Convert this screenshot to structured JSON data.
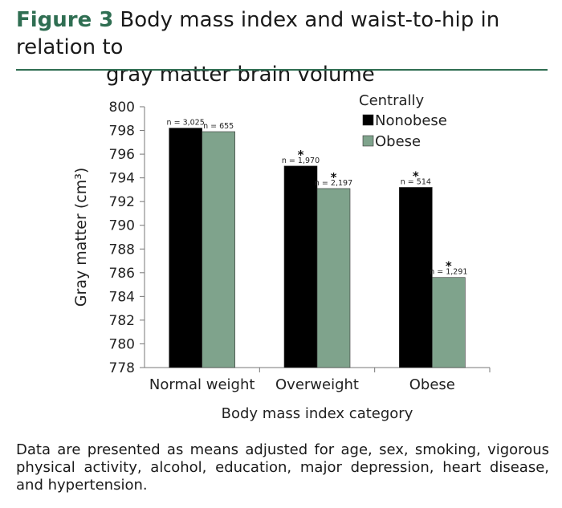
{
  "figure": {
    "label": "Figure 3",
    "title_line1": "Body mass index and waist-to-hip in relation to",
    "title_line2": "gray matter brain volume"
  },
  "caption": "Data are presented as means adjusted for age, sex, smoking, vigorous physical activity, alcohol, education, major depression, heart disease, and hypertension.",
  "colors": {
    "nonobese": "#000000",
    "obese": "#7fa38c",
    "accent": "#2f6e52"
  },
  "chart_data": {
    "type": "bar",
    "title": "",
    "xlabel": "Body mass index category",
    "ylabel": "Gray matter (cm³)",
    "ylim": [
      778,
      800
    ],
    "yticks": [
      778,
      780,
      782,
      784,
      786,
      788,
      790,
      792,
      794,
      796,
      798,
      800
    ],
    "categories": [
      "Normal weight",
      "Overweight",
      "Obese"
    ],
    "legend_title": "Centrally",
    "legend_position": "top-right",
    "grid": false,
    "series": [
      {
        "name": "Nonobese",
        "color": "#000000",
        "values": [
          798.2,
          795.0,
          793.2
        ],
        "labels": [
          "n = 3,025",
          "n = 1,970",
          "n = 514"
        ],
        "significant": [
          false,
          true,
          true
        ]
      },
      {
        "name": "Obese",
        "color": "#7fa38c",
        "values": [
          797.9,
          793.1,
          785.6
        ],
        "labels": [
          "n = 655",
          "n = 2,197",
          "n = 1,291"
        ],
        "significant": [
          false,
          true,
          true
        ]
      }
    ]
  }
}
